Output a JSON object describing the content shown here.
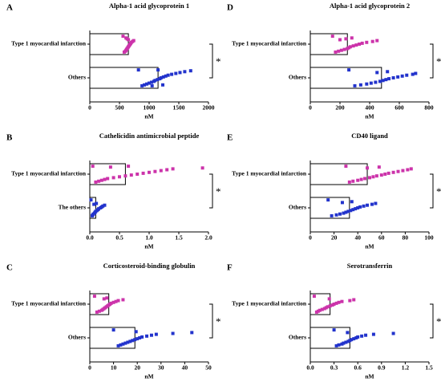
{
  "chart_data": [
    {
      "type": "bar",
      "panel": "A",
      "title": "Alpha-1 acid glycoprotein 1",
      "categories": [
        "Type 1 myocardial infarction",
        "Others"
      ],
      "values": [
        650,
        1150
      ],
      "colors": [
        "#cc33aa",
        "#2233cc"
      ],
      "points": [
        [
          560,
          580,
          600,
          610,
          620,
          630,
          640,
          650,
          660,
          670,
          680,
          690,
          700,
          720,
          740,
          650,
          630,
          610
        ],
        [
          820,
          880,
          920,
          960,
          1000,
          1040,
          1080,
          1100,
          1140,
          1180,
          1200,
          1240,
          1280,
          1320,
          1380,
          1450,
          1520,
          1600,
          1700,
          1150,
          1050,
          1230
        ]
      ],
      "xlim": [
        0,
        2000
      ],
      "xticks": [
        0,
        500,
        1000,
        1500,
        2000
      ],
      "xlabel": "nM",
      "significance": "*"
    },
    {
      "type": "bar",
      "panel": "B",
      "title": "Cathelicidin antimicrobial peptide",
      "categories": [
        "Type 1 myocardial infarction",
        "The others"
      ],
      "values": [
        0.6,
        0.1
      ],
      "colors": [
        "#cc33aa",
        "#2233cc"
      ],
      "points": [
        [
          0.05,
          0.1,
          0.15,
          0.2,
          0.25,
          0.3,
          0.4,
          0.5,
          0.6,
          0.7,
          0.8,
          0.9,
          1.0,
          1.1,
          1.2,
          1.3,
          1.4,
          1.9,
          0.35,
          0.65
        ],
        [
          0.02,
          0.04,
          0.05,
          0.06,
          0.08,
          0.09,
          0.1,
          0.12,
          0.14,
          0.15,
          0.18,
          0.2,
          0.22,
          0.25,
          0.07,
          0.11
        ]
      ],
      "xlim": [
        0,
        2
      ],
      "xticks": [
        {
          "value": 0,
          "label": "0.0"
        },
        0.5,
        {
          "value": 1,
          "label": "1.0"
        },
        1.5,
        {
          "value": 2,
          "label": "2.0"
        }
      ],
      "xlabel": "nM",
      "significance": "*"
    },
    {
      "type": "bar",
      "panel": "C",
      "title": "Corticosteroid-binding globulin",
      "categories": [
        "Type 1 myocardial infarction",
        "Others"
      ],
      "values": [
        8,
        19
      ],
      "colors": [
        "#cc33aa",
        "#2233cc"
      ],
      "points": [
        [
          2,
          3,
          4,
          5,
          5.5,
          6,
          6.5,
          7,
          7.5,
          8,
          8.5,
          9,
          10,
          11,
          12,
          14,
          6,
          7.2
        ],
        [
          10,
          12,
          13,
          14,
          15,
          16,
          17,
          18,
          19,
          20,
          21,
          22,
          24,
          26,
          28,
          35,
          43,
          19.5
        ]
      ],
      "xlim": [
        0,
        50
      ],
      "xticks": [
        0,
        10,
        20,
        30,
        40,
        50
      ],
      "xlabel": "nM",
      "significance": "*"
    },
    {
      "type": "bar",
      "panel": "D",
      "title": "Alpha-1 acid glycoprotein 2",
      "categories": [
        "Type 1 myocardial infarction",
        "Others"
      ],
      "values": [
        250,
        480
      ],
      "colors": [
        "#cc33aa",
        "#2233cc"
      ],
      "points": [
        [
          150,
          170,
          190,
          210,
          230,
          250,
          260,
          270,
          290,
          310,
          330,
          350,
          380,
          420,
          450,
          200,
          240,
          280
        ],
        [
          260,
          300,
          340,
          380,
          410,
          440,
          470,
          490,
          510,
          530,
          560,
          590,
          620,
          650,
          690,
          710,
          450,
          520
        ]
      ],
      "xlim": [
        0,
        800
      ],
      "xticks": [
        0,
        200,
        400,
        600,
        800
      ],
      "xlabel": "nM",
      "significance": "*"
    },
    {
      "type": "bar",
      "panel": "E",
      "title": "CD40 ligand",
      "categories": [
        "Type 1 myocardial infarction",
        "Others"
      ],
      "values": [
        48,
        33
      ],
      "colors": [
        "#cc33aa",
        "#2233cc"
      ],
      "points": [
        [
          30,
          33,
          36,
          40,
          43,
          46,
          50,
          53,
          56,
          60,
          63,
          66,
          70,
          74,
          78,
          82,
          85,
          48,
          58
        ],
        [
          15,
          18,
          22,
          25,
          28,
          30,
          32,
          34,
          36,
          38,
          40,
          42,
          45,
          48,
          52,
          55,
          27,
          35
        ]
      ],
      "xlim": [
        0,
        100
      ],
      "xticks": [
        0,
        20,
        40,
        60,
        80,
        100
      ],
      "xlabel": "nM",
      "significance": "*"
    },
    {
      "type": "bar",
      "panel": "F",
      "title": "Serotransferrin",
      "categories": [
        "Type 1 myocardial infarction",
        "Others"
      ],
      "values": [
        0.25,
        0.5
      ],
      "colors": [
        "#cc33aa",
        "#2233cc"
      ],
      "points": [
        [
          0.05,
          0.08,
          0.1,
          0.12,
          0.15,
          0.18,
          0.2,
          0.22,
          0.25,
          0.28,
          0.3,
          0.33,
          0.36,
          0.4,
          0.5,
          0.55,
          0.24
        ],
        [
          0.3,
          0.33,
          0.36,
          0.4,
          0.42,
          0.45,
          0.48,
          0.5,
          0.52,
          0.55,
          0.58,
          0.6,
          0.65,
          0.7,
          0.8,
          1.05,
          0.47
        ]
      ],
      "xlim": [
        0,
        1.5
      ],
      "xticks": [
        {
          "value": 0,
          "label": "0.0"
        },
        0.3,
        0.6,
        0.9,
        1.2,
        1.5
      ],
      "xlabel": "nM",
      "significance": "*"
    }
  ]
}
